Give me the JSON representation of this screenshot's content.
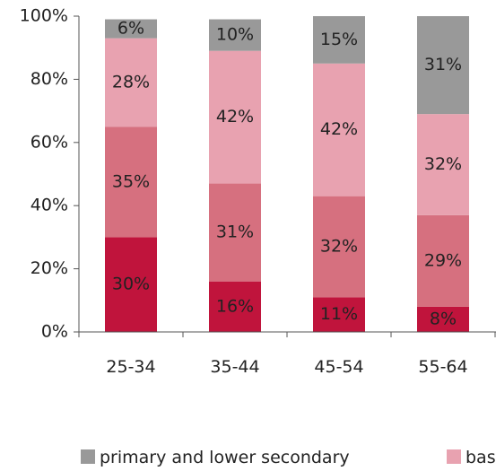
{
  "chart_data": {
    "type": "bar",
    "stacked": true,
    "categories": [
      "25-34",
      "35-44",
      "45-54",
      "55-64"
    ],
    "series": [
      {
        "name": "",
        "color": "#c0143c",
        "values": [
          30,
          16,
          11,
          8
        ],
        "labels": [
          "30%",
          "16%",
          "11%",
          "8%"
        ]
      },
      {
        "name": "",
        "color": "#d6707f",
        "values": [
          35,
          31,
          32,
          29
        ],
        "labels": [
          "35%",
          "31%",
          "32%",
          "29%"
        ]
      },
      {
        "name": "bas",
        "color": "#e8a2b0",
        "values": [
          28,
          42,
          42,
          32
        ],
        "labels": [
          "28%",
          "42%",
          "42%",
          "32%"
        ]
      },
      {
        "name": "primary and lower secondary",
        "color": "#999999",
        "values": [
          6,
          10,
          15,
          31
        ],
        "labels": [
          "6%",
          "10%",
          "15%",
          "31%"
        ]
      }
    ],
    "ylim": [
      0,
      100
    ],
    "yticks": [
      "0%",
      "20%",
      "40%",
      "60%",
      "80%",
      "100%"
    ],
    "grid": false,
    "legend_position": "bottom"
  }
}
